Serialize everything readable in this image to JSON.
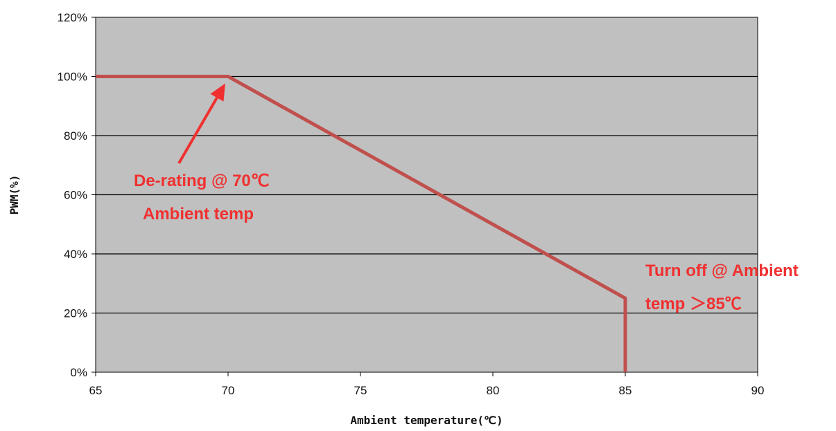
{
  "chart_data": {
    "type": "line",
    "xlabel": "Ambient temperature(℃)",
    "ylabel": "PWM(%)",
    "xlim": [
      65,
      90
    ],
    "ylim": [
      0,
      120
    ],
    "x_ticks": [
      65,
      70,
      75,
      80,
      85,
      90
    ],
    "y_ticks": [
      0,
      20,
      40,
      60,
      80,
      100,
      120
    ],
    "y_tick_labels": [
      "0%",
      "20%",
      "40%",
      "60%",
      "80%",
      "100%",
      "120%"
    ],
    "grid": "horizontal",
    "legend": "none",
    "series": [
      {
        "color": "#c0504d",
        "x": [
          65,
          70,
          85,
          85
        ],
        "y": [
          100,
          100,
          25,
          0
        ]
      }
    ],
    "annotations": [
      {
        "lines": [
          "De-rating @ 70℃",
          "Ambient temp"
        ],
        "color": "#f03030",
        "arrow_to": [
          70,
          100
        ]
      },
      {
        "lines": [
          "Turn off @ Ambient",
          "temp ＞85℃"
        ],
        "color": "#f03030"
      }
    ]
  },
  "colors": {
    "plot_background": "#c0c0c0",
    "gridline": "#000000",
    "annotation": "#f03030",
    "series": "#c0504d"
  }
}
